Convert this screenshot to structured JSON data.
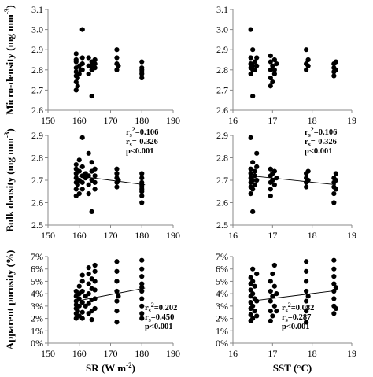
{
  "chart_data": [
    {
      "id": "micro-sr",
      "type": "scatter",
      "ylabel": "Micro-density (mg mm-3)",
      "xlabel": "",
      "xlim": [
        150,
        190
      ],
      "ylim": [
        2.6,
        3.1
      ],
      "xticks": [
        "150",
        "160",
        "170",
        "180",
        "190"
      ],
      "yticks": [
        "2.6",
        "2.7",
        "2.8",
        "2.9",
        "3.0",
        "3.1"
      ],
      "stats": [],
      "trend": null,
      "points": [
        [
          159,
          2.7
        ],
        [
          159,
          2.74
        ],
        [
          159,
          2.77
        ],
        [
          159,
          2.79
        ],
        [
          159,
          2.81
        ],
        [
          159,
          2.84
        ],
        [
          159,
          2.88
        ],
        [
          159,
          2.85
        ],
        [
          159.5,
          2.72
        ],
        [
          159.5,
          2.76
        ],
        [
          160,
          2.78
        ],
        [
          160,
          2.82
        ],
        [
          160.5,
          2.8
        ],
        [
          161,
          2.8
        ],
        [
          161,
          2.83
        ],
        [
          161,
          3.0
        ],
        [
          161,
          2.86
        ],
        [
          163,
          2.78
        ],
        [
          163,
          2.82
        ],
        [
          163,
          2.86
        ],
        [
          164,
          2.8
        ],
        [
          164,
          2.84
        ],
        [
          164,
          2.67
        ],
        [
          164,
          2.82
        ],
        [
          165,
          2.81
        ],
        [
          165,
          2.85
        ],
        [
          165,
          2.83
        ],
        [
          172,
          2.8
        ],
        [
          172,
          2.83
        ],
        [
          172,
          2.86
        ],
        [
          172,
          2.9
        ],
        [
          172.5,
          2.82
        ],
        [
          180,
          2.76
        ],
        [
          180,
          2.78
        ],
        [
          180,
          2.8
        ],
        [
          180,
          2.81
        ],
        [
          180,
          2.84
        ],
        [
          180,
          2.79
        ]
      ]
    },
    {
      "id": "micro-sst",
      "type": "scatter",
      "ylabel": "",
      "xlabel": "",
      "xlim": [
        16,
        19
      ],
      "ylim": [
        2.6,
        3.1
      ],
      "xticks": [
        "16",
        "17",
        "18",
        "19"
      ],
      "yticks": [
        "2.6",
        "2.7",
        "2.8",
        "2.9",
        "3.0",
        "3.1"
      ],
      "stats": [],
      "trend": null,
      "points": [
        [
          16.45,
          2.78
        ],
        [
          16.45,
          2.81
        ],
        [
          16.45,
          2.83
        ],
        [
          16.45,
          2.86
        ],
        [
          16.45,
          3.0
        ],
        [
          16.5,
          2.8
        ],
        [
          16.5,
          2.82
        ],
        [
          16.5,
          2.9
        ],
        [
          16.5,
          2.67
        ],
        [
          16.55,
          2.84
        ],
        [
          16.55,
          2.8
        ],
        [
          16.6,
          2.82
        ],
        [
          16.6,
          2.86
        ],
        [
          16.95,
          2.72
        ],
        [
          16.95,
          2.76
        ],
        [
          16.95,
          2.8
        ],
        [
          16.95,
          2.84
        ],
        [
          16.95,
          2.87
        ],
        [
          17.0,
          2.74
        ],
        [
          17.0,
          2.82
        ],
        [
          17.05,
          2.8
        ],
        [
          17.05,
          2.78
        ],
        [
          17.05,
          2.85
        ],
        [
          17.1,
          2.83
        ],
        [
          17.85,
          2.8
        ],
        [
          17.85,
          2.83
        ],
        [
          17.85,
          2.9
        ],
        [
          17.9,
          2.82
        ],
        [
          17.9,
          2.85
        ],
        [
          18.55,
          2.77
        ],
        [
          18.55,
          2.79
        ],
        [
          18.55,
          2.81
        ],
        [
          18.55,
          2.83
        ],
        [
          18.6,
          2.8
        ],
        [
          18.6,
          2.84
        ]
      ]
    },
    {
      "id": "bulk-sr",
      "type": "scatter",
      "ylabel": "Bulk density (mg mm-3)",
      "xlabel": "",
      "xlim": [
        150,
        190
      ],
      "ylim": [
        2.5,
        2.9
      ],
      "xticks": [
        "150",
        "160",
        "170",
        "180",
        "190"
      ],
      "yticks": [
        "2.5",
        "2.6",
        "2.7",
        "2.8",
        "2.9"
      ],
      "stats": [
        "rs2=0.106",
        "rs=-0.326",
        "p<0.001"
      ],
      "trend": [
        [
          159,
          2.72
        ],
        [
          181,
          2.68
        ]
      ],
      "points": [
        [
          159,
          2.63
        ],
        [
          159,
          2.66
        ],
        [
          159,
          2.69
        ],
        [
          159,
          2.71
        ],
        [
          159,
          2.73
        ],
        [
          159,
          2.75
        ],
        [
          159,
          2.77
        ],
        [
          159.5,
          2.68
        ],
        [
          160,
          2.7
        ],
        [
          160,
          2.74
        ],
        [
          160,
          2.79
        ],
        [
          160,
          2.64
        ],
        [
          161,
          2.69
        ],
        [
          161,
          2.72
        ],
        [
          161,
          2.76
        ],
        [
          161,
          2.89
        ],
        [
          161,
          2.66
        ],
        [
          162,
          2.71
        ],
        [
          162,
          2.73
        ],
        [
          163,
          2.68
        ],
        [
          163,
          2.72
        ],
        [
          163,
          2.82
        ],
        [
          163,
          2.64
        ],
        [
          164,
          2.7
        ],
        [
          164,
          2.74
        ],
        [
          164,
          2.78
        ],
        [
          164,
          2.56
        ],
        [
          165,
          2.66
        ],
        [
          165,
          2.69
        ],
        [
          165,
          2.72
        ],
        [
          165,
          2.75
        ],
        [
          172,
          2.67
        ],
        [
          172,
          2.69
        ],
        [
          172,
          2.71
        ],
        [
          172,
          2.73
        ],
        [
          172,
          2.75
        ],
        [
          172.5,
          2.7
        ],
        [
          180,
          2.6
        ],
        [
          180,
          2.63
        ],
        [
          180,
          2.65
        ],
        [
          180,
          2.67
        ],
        [
          180,
          2.69
        ],
        [
          180,
          2.71
        ],
        [
          180,
          2.73
        ],
        [
          180,
          2.66
        ],
        [
          180,
          2.68
        ]
      ]
    },
    {
      "id": "bulk-sst",
      "type": "scatter",
      "ylabel": "",
      "xlabel": "",
      "xlim": [
        16,
        19
      ],
      "ylim": [
        2.5,
        2.9
      ],
      "xticks": [
        "16",
        "17",
        "18",
        "19"
      ],
      "yticks": [
        "2.5",
        "2.6",
        "2.7",
        "2.8",
        "2.9"
      ],
      "stats": [
        "rs2=0.106",
        "rs=-0.326",
        "p<0.001"
      ],
      "trend": [
        [
          16.45,
          2.72
        ],
        [
          18.6,
          2.68
        ]
      ],
      "points": [
        [
          16.45,
          2.64
        ],
        [
          16.45,
          2.67
        ],
        [
          16.45,
          2.69
        ],
        [
          16.45,
          2.71
        ],
        [
          16.45,
          2.73
        ],
        [
          16.45,
          2.75
        ],
        [
          16.45,
          2.89
        ],
        [
          16.5,
          2.66
        ],
        [
          16.5,
          2.7
        ],
        [
          16.5,
          2.78
        ],
        [
          16.5,
          2.56
        ],
        [
          16.55,
          2.68
        ],
        [
          16.55,
          2.72
        ],
        [
          16.55,
          2.74
        ],
        [
          16.6,
          2.7
        ],
        [
          16.6,
          2.76
        ],
        [
          16.6,
          2.82
        ],
        [
          16.95,
          2.63
        ],
        [
          16.95,
          2.66
        ],
        [
          16.95,
          2.69
        ],
        [
          16.95,
          2.72
        ],
        [
          16.95,
          2.75
        ],
        [
          17.0,
          2.7
        ],
        [
          17.0,
          2.73
        ],
        [
          17.05,
          2.68
        ],
        [
          17.05,
          2.74
        ],
        [
          17.1,
          2.71
        ],
        [
          17.85,
          2.67
        ],
        [
          17.85,
          2.69
        ],
        [
          17.85,
          2.71
        ],
        [
          17.85,
          2.73
        ],
        [
          17.9,
          2.7
        ],
        [
          17.9,
          2.74
        ],
        [
          18.55,
          2.6
        ],
        [
          18.55,
          2.64
        ],
        [
          18.55,
          2.67
        ],
        [
          18.55,
          2.69
        ],
        [
          18.55,
          2.71
        ],
        [
          18.6,
          2.66
        ],
        [
          18.6,
          2.7
        ],
        [
          18.6,
          2.73
        ]
      ]
    },
    {
      "id": "porosity-sr",
      "type": "scatter",
      "ylabel": "Apparent porosity (%)",
      "xlabel": "SR (W m-2)",
      "xlim": [
        150,
        190
      ],
      "ylim": [
        0,
        7
      ],
      "xticks": [
        "150",
        "160",
        "170",
        "180",
        "190"
      ],
      "yticks": [
        "0%",
        "1%",
        "2%",
        "3%",
        "4%",
        "5%",
        "6%",
        "7%"
      ],
      "stats": [
        "rs2=0.202",
        "rs=0.450",
        "p<0.001"
      ],
      "trend": [
        [
          159,
          3.4
        ],
        [
          181,
          4.45
        ]
      ],
      "points": [
        [
          159,
          2.0
        ],
        [
          159,
          2.4
        ],
        [
          159,
          2.8
        ],
        [
          159,
          3.1
        ],
        [
          159,
          3.4
        ],
        [
          159,
          3.8
        ],
        [
          159,
          4.2
        ],
        [
          159.5,
          2.6
        ],
        [
          160,
          2.2
        ],
        [
          160,
          3.0
        ],
        [
          160,
          3.6
        ],
        [
          160,
          4.0
        ],
        [
          160,
          4.6
        ],
        [
          161,
          2.5
        ],
        [
          161,
          3.3
        ],
        [
          161,
          4.2
        ],
        [
          161,
          5.0
        ],
        [
          161,
          5.5
        ],
        [
          161,
          2.0
        ],
        [
          162,
          3.0
        ],
        [
          162,
          3.8
        ],
        [
          163,
          2.4
        ],
        [
          163,
          3.2
        ],
        [
          163,
          4.0
        ],
        [
          163,
          4.8
        ],
        [
          163,
          5.6
        ],
        [
          163,
          6.1
        ],
        [
          164,
          2.6
        ],
        [
          164,
          3.5
        ],
        [
          164,
          4.4
        ],
        [
          164,
          5.2
        ],
        [
          164,
          1.9
        ],
        [
          165,
          2.8
        ],
        [
          165,
          3.6
        ],
        [
          165,
          4.3
        ],
        [
          165,
          5.0
        ],
        [
          165,
          5.8
        ],
        [
          165,
          6.3
        ],
        [
          172,
          1.7
        ],
        [
          172,
          2.6
        ],
        [
          172,
          3.4
        ],
        [
          172,
          4.2
        ],
        [
          172,
          5.0
        ],
        [
          172,
          5.8
        ],
        [
          172,
          6.6
        ],
        [
          172.5,
          3.8
        ],
        [
          180,
          2.4
        ],
        [
          180,
          3.0
        ],
        [
          180,
          3.6
        ],
        [
          180,
          4.2
        ],
        [
          180,
          4.8
        ],
        [
          180,
          5.4
        ],
        [
          180,
          6.0
        ],
        [
          180,
          6.7
        ],
        [
          180,
          2.0
        ],
        [
          180,
          4.5
        ]
      ]
    },
    {
      "id": "porosity-sst",
      "type": "scatter",
      "ylabel": "",
      "xlabel": "SST (°C)",
      "xlim": [
        16,
        19
      ],
      "ylim": [
        0,
        7
      ],
      "xticks": [
        "16",
        "17",
        "18",
        "19"
      ],
      "yticks": [
        "0%",
        "1%",
        "2%",
        "3%",
        "4%",
        "5%",
        "6%",
        "7%"
      ],
      "stats": [
        "rs2=0.082",
        "rs=0.287",
        "p<0.001"
      ],
      "trend": [
        [
          16.45,
          3.4
        ],
        [
          18.6,
          4.25
        ]
      ],
      "points": [
        [
          16.45,
          1.8
        ],
        [
          16.45,
          2.3
        ],
        [
          16.45,
          2.8
        ],
        [
          16.45,
          3.3
        ],
        [
          16.45,
          3.8
        ],
        [
          16.45,
          4.3
        ],
        [
          16.45,
          4.8
        ],
        [
          16.45,
          5.3
        ],
        [
          16.5,
          2.0
        ],
        [
          16.5,
          3.0
        ],
        [
          16.5,
          4.0
        ],
        [
          16.5,
          5.0
        ],
        [
          16.5,
          6.0
        ],
        [
          16.55,
          2.6
        ],
        [
          16.55,
          3.6
        ],
        [
          16.55,
          4.6
        ],
        [
          16.6,
          2.2
        ],
        [
          16.6,
          3.4
        ],
        [
          16.6,
          5.6
        ],
        [
          16.95,
          1.8
        ],
        [
          16.95,
          2.6
        ],
        [
          16.95,
          3.4
        ],
        [
          16.95,
          4.2
        ],
        [
          16.95,
          5.0
        ],
        [
          17.0,
          2.2
        ],
        [
          17.0,
          3.8
        ],
        [
          17.0,
          5.6
        ],
        [
          17.05,
          3.0
        ],
        [
          17.05,
          4.6
        ],
        [
          17.05,
          6.3
        ],
        [
          17.1,
          2.6
        ],
        [
          17.1,
          4.0
        ],
        [
          17.85,
          1.7
        ],
        [
          17.85,
          2.6
        ],
        [
          17.85,
          3.4
        ],
        [
          17.85,
          4.2
        ],
        [
          17.85,
          5.0
        ],
        [
          17.85,
          5.8
        ],
        [
          17.85,
          6.6
        ],
        [
          17.9,
          3.8
        ],
        [
          18.55,
          2.4
        ],
        [
          18.55,
          3.0
        ],
        [
          18.55,
          3.6
        ],
        [
          18.55,
          4.2
        ],
        [
          18.55,
          4.8
        ],
        [
          18.55,
          5.4
        ],
        [
          18.55,
          6.0
        ],
        [
          18.55,
          6.7
        ],
        [
          18.6,
          2.8
        ],
        [
          18.6,
          4.5
        ]
      ]
    }
  ]
}
